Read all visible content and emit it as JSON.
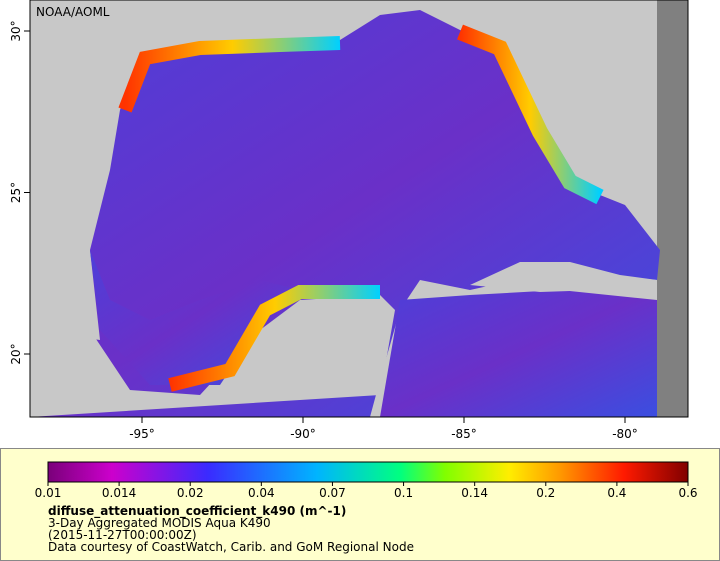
{
  "map": {
    "credit": "NOAA/AOML",
    "lon_ticks": [
      "-95°",
      "-90°",
      "-85°",
      "-80°"
    ],
    "lat_ticks": [
      "30°",
      "25°",
      "20°"
    ]
  },
  "colorbar": {
    "labels": [
      "0.01",
      "0.014",
      "0.02",
      "0.04",
      "0.07",
      "0.1",
      "0.14",
      "0.2",
      "0.4",
      "0.6"
    ]
  },
  "caption": {
    "variable": "diffuse_attenuation_coefficient_k490 (m^-1)",
    "dataset": "3-Day Aggregated MODIS Aqua K490",
    "time": "(2015-11-27T00:00:00Z)",
    "courtesy": "Data courtesy of CoastWatch, Carib. and GoM Regional Node"
  }
}
